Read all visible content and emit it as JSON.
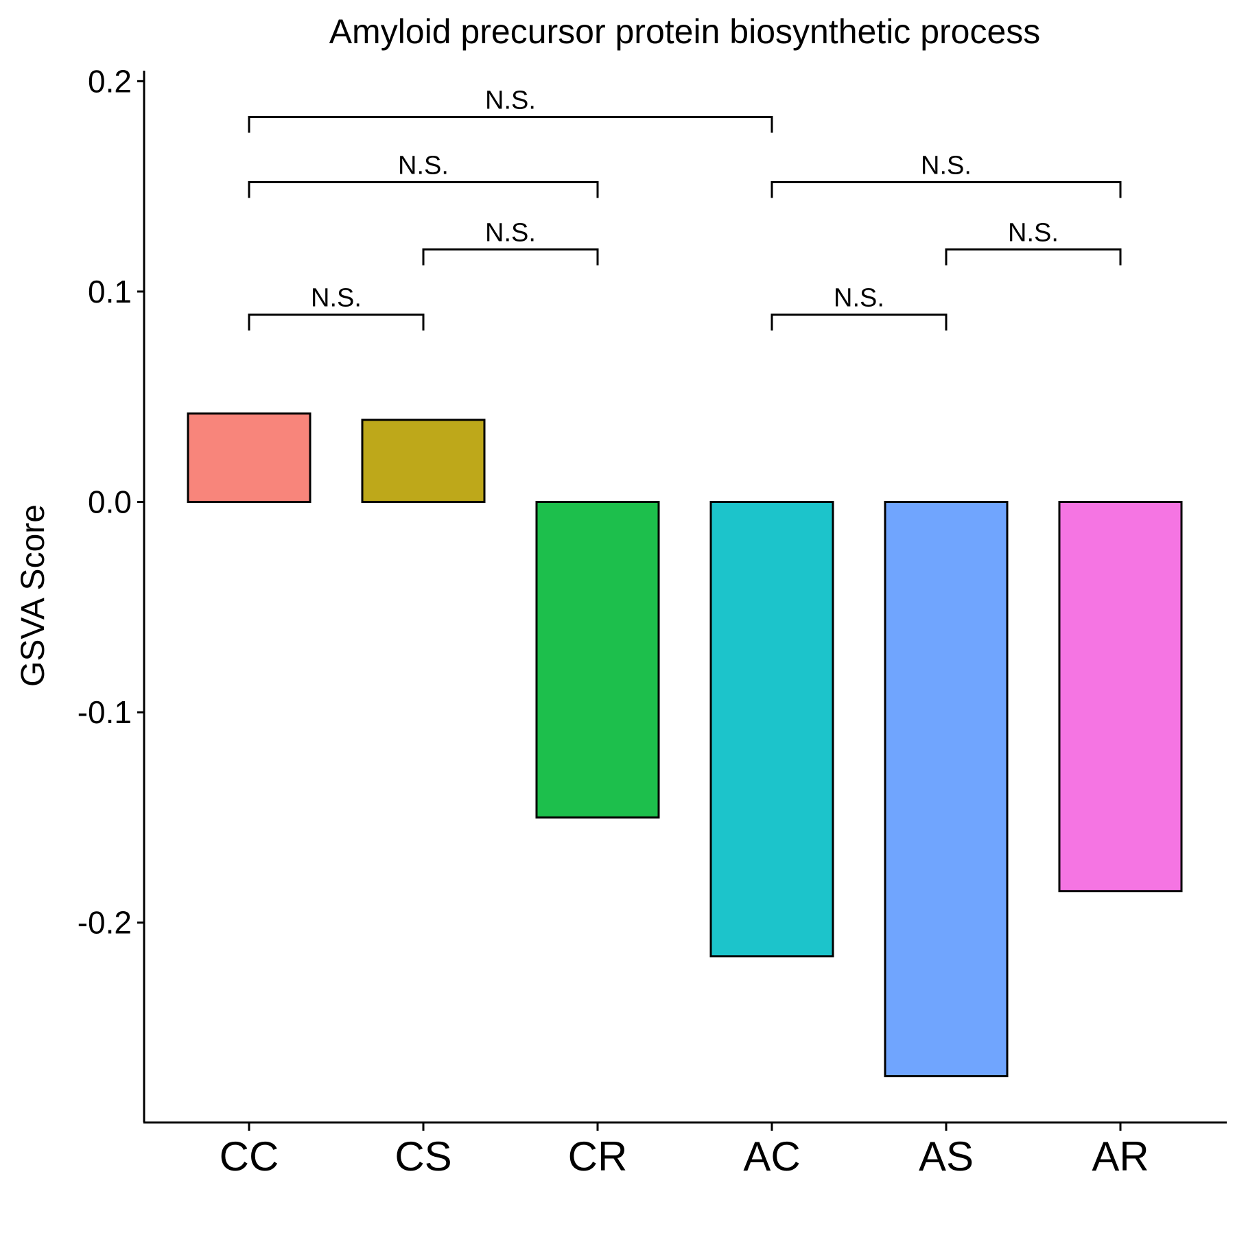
{
  "chart_data": {
    "type": "bar",
    "title": "Amyloid precursor protein biosynthetic process",
    "xlabel": "",
    "ylabel": "GSVA Score",
    "categories": [
      "CC",
      "CS",
      "CR",
      "AC",
      "AS",
      "AR"
    ],
    "values": [
      0.042,
      0.039,
      -0.15,
      -0.216,
      -0.273,
      -0.185
    ],
    "colors": [
      "#F8857B",
      "#BEA81A",
      "#1DBF4C",
      "#1CC4CB",
      "#70A5FE",
      "#F575E3"
    ],
    "ylim": [
      -0.295,
      0.205
    ],
    "yticks": [
      0.2,
      0.1,
      0.0,
      -0.1,
      -0.2
    ],
    "ytick_labels": [
      "0.2",
      "0.1",
      "0.0",
      "-0.1",
      "-0.2"
    ],
    "grid": false,
    "legend": "none",
    "comparisons": [
      {
        "from": "CC",
        "to": "AC",
        "y": 0.183,
        "label": "N.S."
      },
      {
        "from": "CC",
        "to": "CR",
        "y": 0.152,
        "label": "N.S."
      },
      {
        "from": "AC",
        "to": "AR",
        "y": 0.152,
        "label": "N.S."
      },
      {
        "from": "CS",
        "to": "CR",
        "y": 0.12,
        "label": "N.S."
      },
      {
        "from": "AS",
        "to": "AR",
        "y": 0.12,
        "label": "N.S."
      },
      {
        "from": "CC",
        "to": "CS",
        "y": 0.089,
        "label": "N.S."
      },
      {
        "from": "AC",
        "to": "AS",
        "y": 0.089,
        "label": "N.S."
      }
    ]
  }
}
